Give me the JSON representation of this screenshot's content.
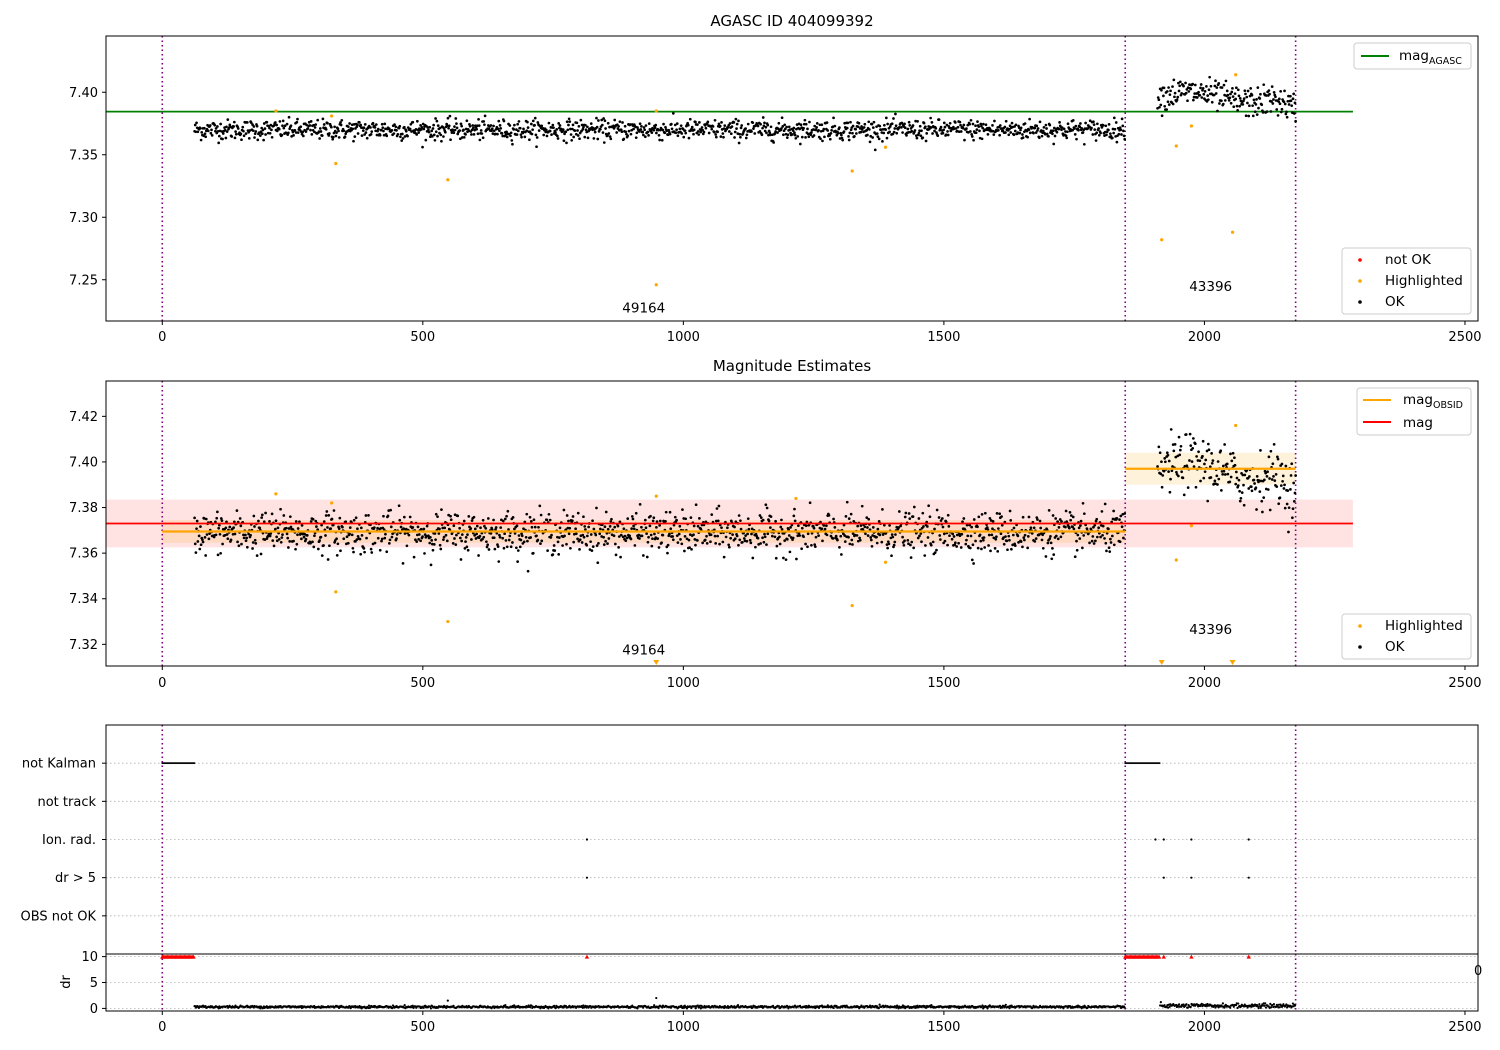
{
  "figure": {
    "colors": {
      "ok": "#000000",
      "highlighted": "#ffa500",
      "not_ok": "#ff0000",
      "mag_agasc": "#008000",
      "mag_obsid": "#ffa500",
      "mag": "#ff0000",
      "obs_boundary": "#800080",
      "grid": "#b0b0b0"
    },
    "obs_boundaries": [
      0,
      1848,
      2175
    ],
    "mag_end": 2285
  },
  "chart_data": [
    {
      "type": "scatter",
      "title": "AGASC ID 404099392",
      "xlim": [
        -108,
        2525
      ],
      "ylim": [
        7.217,
        7.445
      ],
      "x_ticks": [
        0,
        500,
        1000,
        1500,
        2000,
        2500
      ],
      "x_tick_labels": [
        "0",
        "500",
        "1000",
        "1500",
        "2000",
        "2500"
      ],
      "y_ticks": [
        7.25,
        7.3,
        7.35,
        7.4
      ],
      "y_tick_labels": [
        "7.25",
        "7.30",
        "7.35",
        "7.40"
      ],
      "annotations": [
        {
          "text": "49164",
          "x": 924,
          "y": 7.224
        },
        {
          "text": "43396",
          "x": 2012,
          "y": 7.241
        }
      ],
      "lines": [
        {
          "name": "mag",
          "sub": "AGASC",
          "y": 7.3845,
          "x_range": [
            -108,
            2285
          ]
        }
      ],
      "legend": {
        "lines": {
          "placement": "top-right",
          "entries": [
            {
              "label": "mag",
              "sub": "AGASC"
            }
          ]
        },
        "points": {
          "placement": "bottom-right",
          "entries": [
            "not OK",
            "Highlighted",
            "OK"
          ]
        }
      },
      "ok_segments": [
        {
          "x_range": [
            62,
            1848
          ],
          "mean": 7.37,
          "sd": 0.004
        },
        {
          "x_range": [
            1910,
            2175
          ],
          "mean": 7.396,
          "sd": 0.006
        }
      ],
      "highlighted_points": [
        {
          "x": 218,
          "y": 7.385
        },
        {
          "x": 325,
          "y": 7.381
        },
        {
          "x": 333,
          "y": 7.343
        },
        {
          "x": 548,
          "y": 7.33
        },
        {
          "x": 948,
          "y": 7.385
        },
        {
          "x": 948,
          "y": 7.246
        },
        {
          "x": 1324,
          "y": 7.337
        },
        {
          "x": 1388,
          "y": 7.356
        },
        {
          "x": 1918,
          "y": 7.282
        },
        {
          "x": 1946,
          "y": 7.357
        },
        {
          "x": 1975,
          "y": 7.373
        },
        {
          "x": 2054,
          "y": 7.288
        },
        {
          "x": 2060,
          "y": 7.414
        }
      ]
    },
    {
      "type": "scatter",
      "title": "Magnitude Estimates",
      "xlim": [
        -108,
        2525
      ],
      "ylim": [
        7.3105,
        7.4355
      ],
      "x_ticks": [
        0,
        500,
        1000,
        1500,
        2000,
        2500
      ],
      "x_tick_labels": [
        "0",
        "500",
        "1000",
        "1500",
        "2000",
        "2500"
      ],
      "y_ticks": [
        7.32,
        7.34,
        7.36,
        7.38,
        7.4,
        7.42
      ],
      "y_tick_labels": [
        "7.32",
        "7.34",
        "7.36",
        "7.38",
        "7.40",
        "7.42"
      ],
      "annotations": [
        {
          "text": "49164",
          "x": 924,
          "y": 7.3155
        },
        {
          "text": "43396",
          "x": 2012,
          "y": 7.3245
        }
      ],
      "lines": [
        {
          "name": "mag",
          "sub": "OBSID",
          "segments": [
            {
              "x_range": [
                0,
                1848
              ],
              "y": 7.3695,
              "band": [
                7.3645,
                7.3745
              ]
            },
            {
              "x_range": [
                1848,
                2175
              ],
              "y": 7.397,
              "band": [
                7.39,
                7.404
              ]
            }
          ]
        },
        {
          "name": "mag",
          "sub": "",
          "y": 7.373,
          "x_range": [
            -108,
            2285
          ],
          "band": [
            7.3625,
            7.3835
          ]
        }
      ],
      "legend": {
        "lines": {
          "placement": "top-right",
          "entries": [
            {
              "label": "mag",
              "sub": "OBSID"
            },
            {
              "label": "mag",
              "sub": ""
            }
          ]
        },
        "points": {
          "placement": "bottom-right",
          "entries": [
            "Highlighted",
            "OK"
          ]
        }
      },
      "ok_segments": [
        {
          "x_range": [
            62,
            1848
          ],
          "mean": 7.369,
          "sd": 0.0045
        },
        {
          "x_range": [
            1910,
            2175
          ],
          "mean": 7.396,
          "sd": 0.006
        }
      ],
      "highlighted_points": [
        {
          "x": 218,
          "y": 7.386
        },
        {
          "x": 325,
          "y": 7.382
        },
        {
          "x": 333,
          "y": 7.343
        },
        {
          "x": 548,
          "y": 7.33
        },
        {
          "x": 948,
          "y": 7.385
        },
        {
          "x": 1216,
          "y": 7.384
        },
        {
          "x": 1324,
          "y": 7.337
        },
        {
          "x": 1388,
          "y": 7.356
        },
        {
          "x": 1946,
          "y": 7.357
        },
        {
          "x": 1975,
          "y": 7.372
        },
        {
          "x": 2060,
          "y": 7.416
        }
      ],
      "below_range_markers": [
        948,
        1918,
        2054
      ]
    },
    {
      "type": "scatter",
      "title": "",
      "xlim": [
        -108,
        2525
      ],
      "flag_rows": [
        "not Kalman",
        "not track",
        "Ion. rad.",
        "dr > 5",
        "OBS not OK"
      ],
      "flags": {
        "not Kalman": {
          "ranges": [
            [
              0,
              62
            ],
            [
              1848,
              1915
            ]
          ],
          "points": []
        },
        "not track": {
          "ranges": [],
          "points": []
        },
        "Ion. rad.": {
          "ranges": [],
          "points": [
            815,
            1906,
            1922,
            1975,
            2085
          ]
        },
        "dr > 5": {
          "ranges": [],
          "points": [
            815,
            1922,
            1975,
            2085
          ]
        },
        "OBS not OK": {
          "ranges": [],
          "points": []
        }
      }
    },
    {
      "type": "scatter",
      "title": "",
      "ylabel": "dr",
      "xlim": [
        -108,
        2525
      ],
      "ylim": [
        -0.5,
        10.5
      ],
      "x_ticks": [
        0,
        500,
        1000,
        1500,
        2000,
        2500
      ],
      "x_tick_labels": [
        "0",
        "500",
        "1000",
        "1500",
        "2000",
        "2500"
      ],
      "y_ticks": [
        0,
        5,
        10
      ],
      "y_tick_labels": [
        "0",
        "5",
        "10"
      ],
      "dr_segments": [
        {
          "x_range": [
            62,
            1848
          ],
          "mean": 0.3,
          "sd": 0.12
        },
        {
          "x_range": [
            1915,
            2175
          ],
          "mean": 0.5,
          "sd": 0.2
        }
      ],
      "dr_outliers": [
        {
          "x": 548,
          "y": 1.5
        },
        {
          "x": 948,
          "y": 2.0
        }
      ],
      "red_markers": {
        "ranges": [
          [
            0,
            62
          ],
          [
            1848,
            1915
          ]
        ],
        "points": [
          815,
          1922,
          1975,
          2085
        ]
      }
    }
  ]
}
